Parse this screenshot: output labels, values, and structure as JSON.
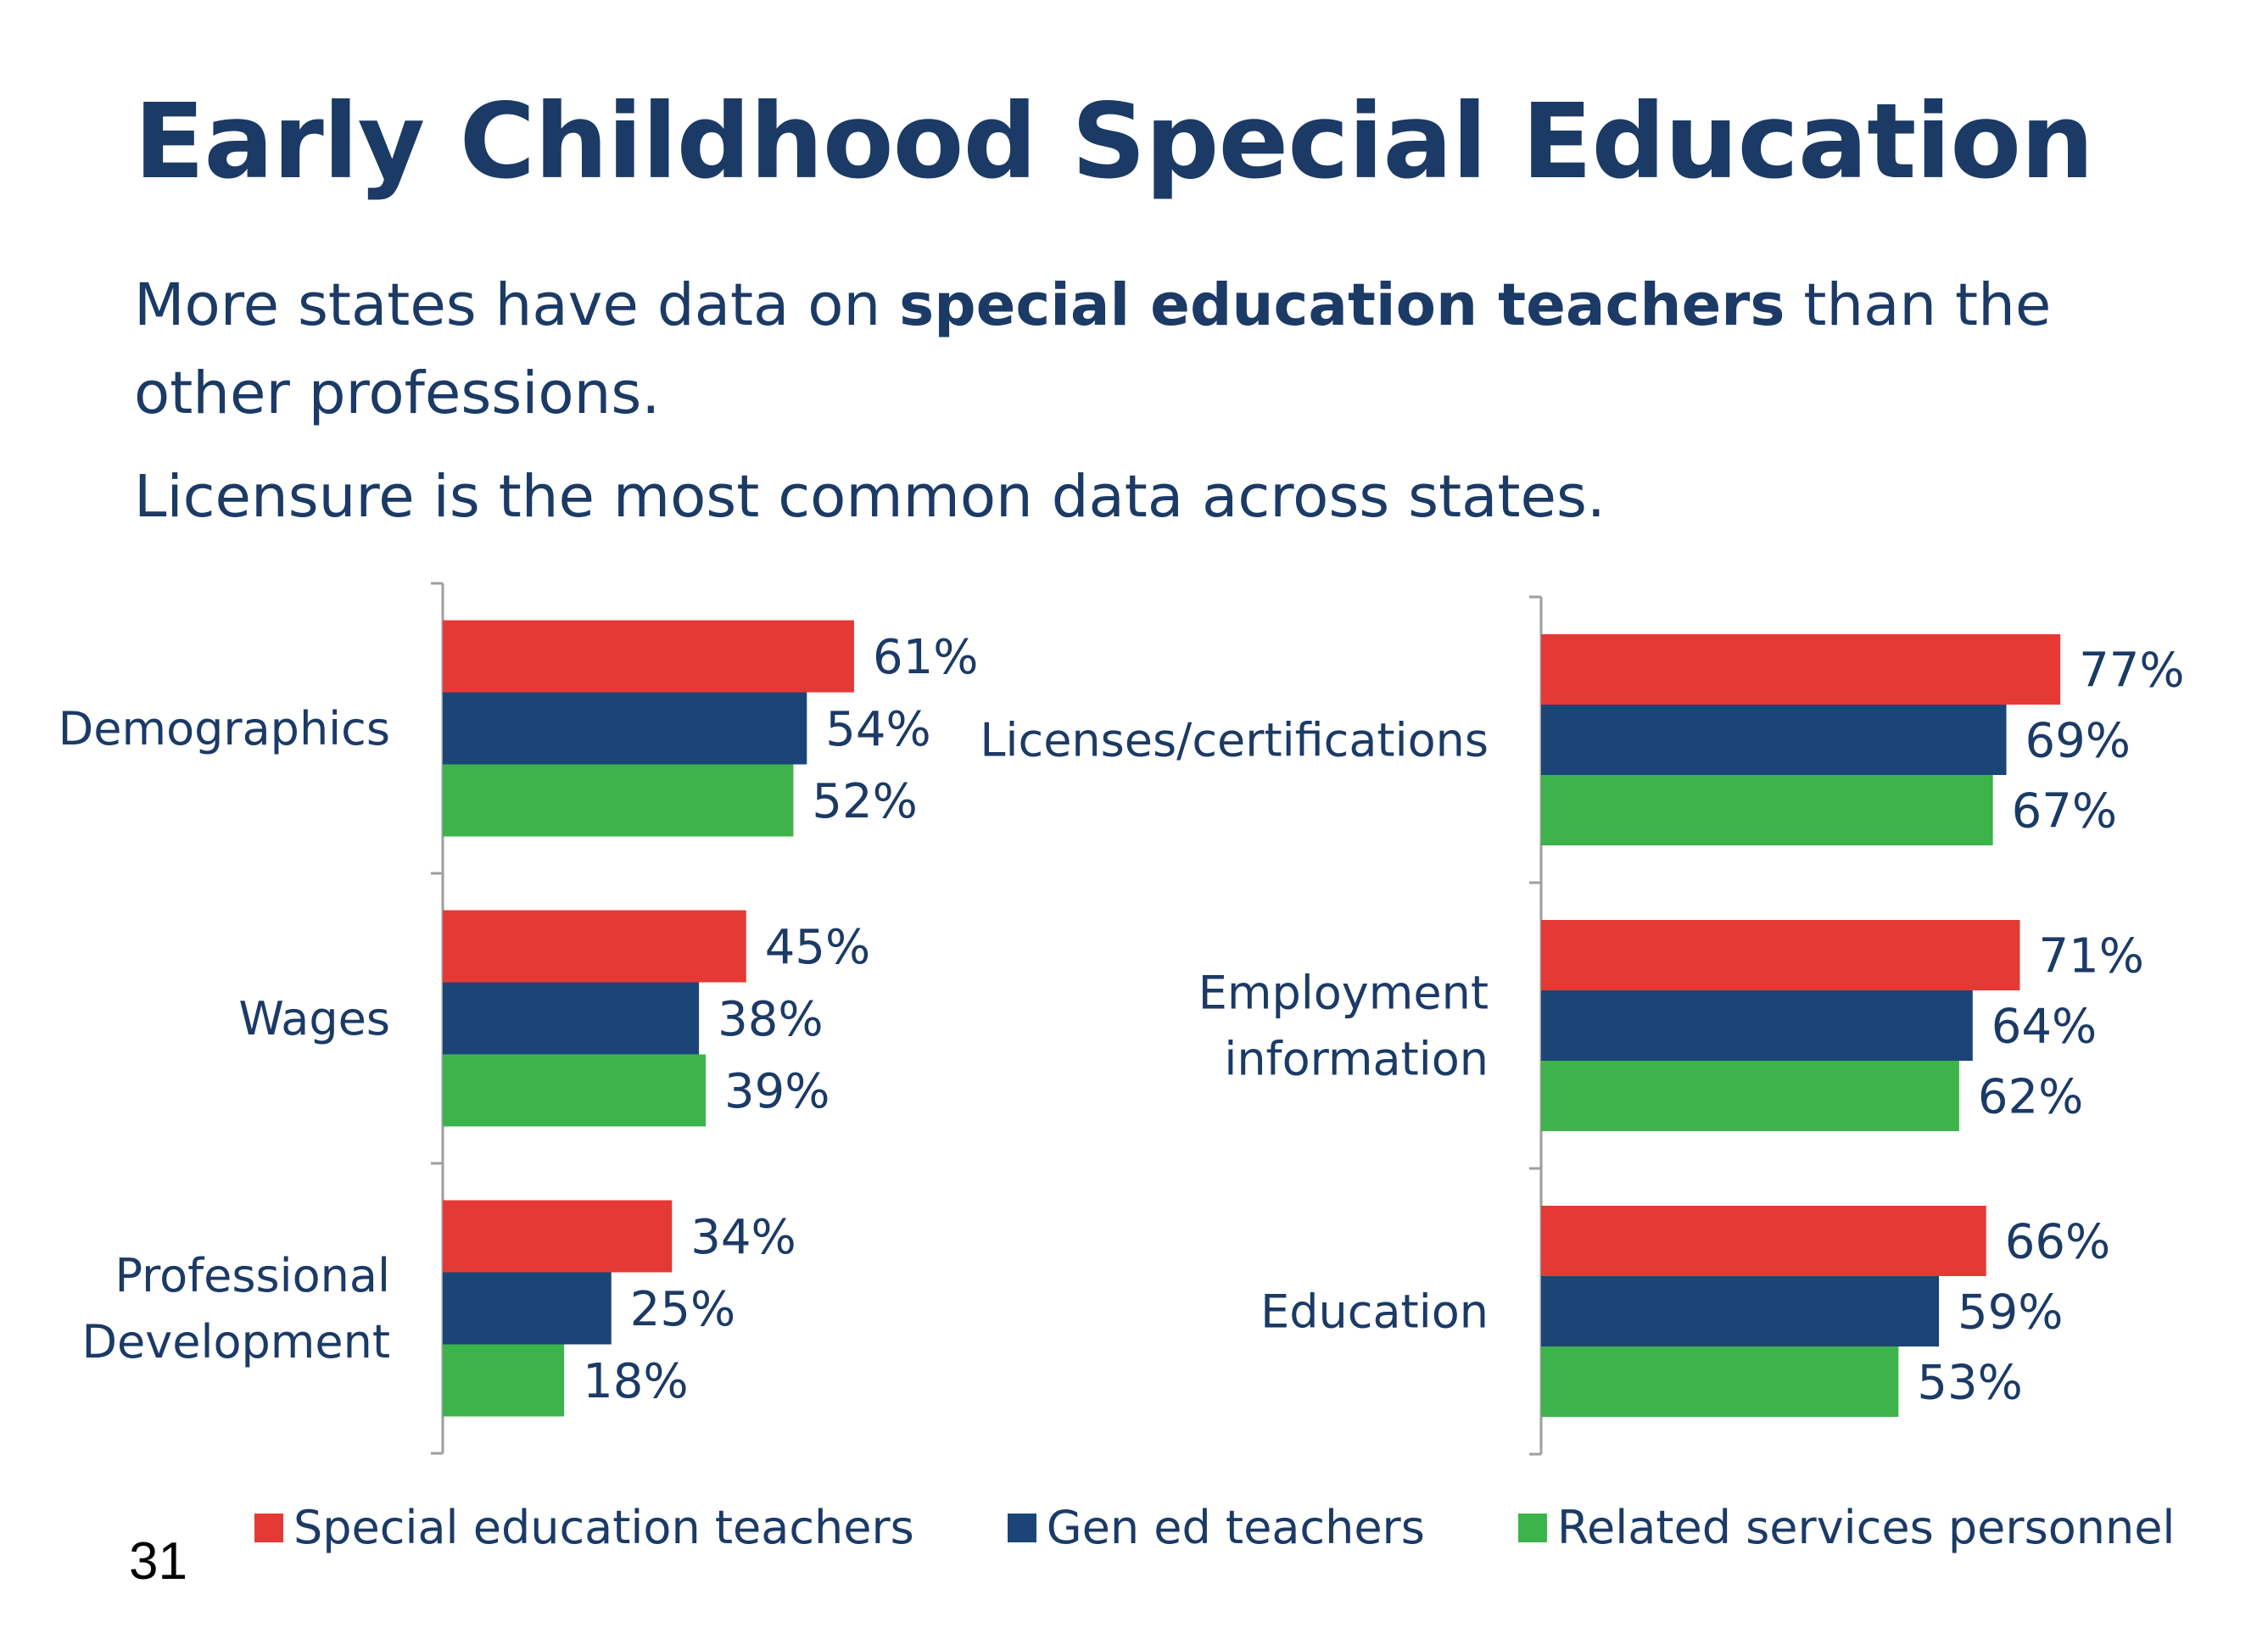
{
  "slide": {
    "title": "Early Childhood Special Education",
    "paragraph1": {
      "before": "More states have data on ",
      "bold": "special education teachers",
      "after": " than the other professions."
    },
    "paragraph2": "Licensure is the most common data across states.",
    "page_number": "31"
  },
  "legend": [
    {
      "label": "Special education teachers",
      "color": "#e53935"
    },
    {
      "label": "Gen ed teachers",
      "color": "#1b4577"
    },
    {
      "label": "Related services personnel",
      "color": "#3cb44b"
    }
  ],
  "chart_data": [
    {
      "type": "bar",
      "orientation": "horizontal",
      "categories": [
        [
          "Demographics"
        ],
        [
          "Wages"
        ],
        [
          "Professional",
          "Development"
        ]
      ],
      "series": [
        {
          "name": "Special education teachers",
          "color": "#e53935",
          "values": [
            61,
            45,
            34
          ],
          "labels": [
            "61%",
            "45%",
            "34%"
          ]
        },
        {
          "name": "Gen ed teachers",
          "color": "#1b4577",
          "values": [
            54,
            38,
            25
          ],
          "labels": [
            "54%",
            "38%",
            "25%"
          ]
        },
        {
          "name": "Related services personnel",
          "color": "#3cb44b",
          "values": [
            52,
            39,
            18
          ],
          "labels": [
            "52%",
            "39%",
            "18%"
          ]
        }
      ],
      "unit": "%",
      "xlim": [
        0,
        100
      ]
    },
    {
      "type": "bar",
      "orientation": "horizontal",
      "categories": [
        [
          "Licenses/certifications"
        ],
        [
          "Employment",
          "information"
        ],
        [
          "Education"
        ]
      ],
      "series": [
        {
          "name": "Special education teachers",
          "color": "#e53935",
          "values": [
            77,
            71,
            66
          ],
          "labels": [
            "77%",
            "71%",
            "66%"
          ]
        },
        {
          "name": "Gen ed teachers",
          "color": "#1b4577",
          "values": [
            69,
            64,
            59
          ],
          "labels": [
            "69%",
            "64%",
            "59%"
          ]
        },
        {
          "name": "Related services personnel",
          "color": "#3cb44b",
          "values": [
            67,
            62,
            53
          ],
          "labels": [
            "67%",
            "62%",
            "53%"
          ]
        }
      ],
      "unit": "%",
      "xlim": [
        0,
        100
      ]
    }
  ]
}
